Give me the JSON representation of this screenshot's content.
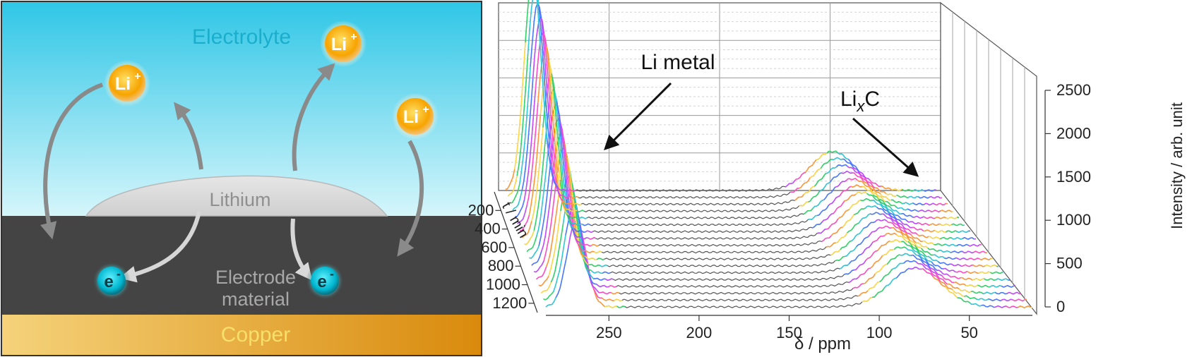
{
  "left_panel": {
    "electrolyte_label": "Electrolyte",
    "lithium_label": "Lithium",
    "electrode_label_line1": "Electrode",
    "electrode_label_line2": "material",
    "copper_label": "Copper",
    "ion_symbol": "Li",
    "ion_charge": "+",
    "electron_symbol": "e",
    "electron_charge": "-",
    "colors": {
      "electrolyte_top": "#2fc6e6",
      "electrolyte_bottom": "#d6f6fb",
      "electrode": "#444444",
      "lithium": "#d9d9d9",
      "copper_left": "#f5d27a",
      "copper_right": "#d98a0c",
      "ion_core": "#f7a400",
      "electron_core": "#00c2d9",
      "arrow": "#8a8a8a"
    }
  },
  "chart_data": {
    "type": "3d-waterfall",
    "xlabel": "δ / ppm",
    "ylabel": "t / min",
    "zlabel": "Intensity / arb. unit",
    "x_ticks": [
      250,
      200,
      150,
      100,
      50
    ],
    "y_ticks": [
      200,
      400,
      600,
      800,
      1000,
      1200
    ],
    "z_ticks": [
      0,
      500,
      1000,
      1500,
      2000,
      2500
    ],
    "xlim": [
      285,
      15
    ],
    "zlim": [
      0,
      2500
    ],
    "n_traces": 18,
    "annotations": [
      {
        "text": "Li metal",
        "target_ppm": 265
      },
      {
        "text_main": "Li",
        "text_sub": "x",
        "text_tail": "C",
        "target_ppm": 90
      }
    ],
    "peaks": {
      "li_metal_ppm": 268,
      "li_metal_intensity_first": 1000,
      "li_metal_intensity_last": 2500,
      "lixc_ppm": 80,
      "lixc_intensity": 450
    },
    "colors": {
      "baseline": "#555555",
      "rainbow": [
        "#ff9a3c",
        "#ffd94a",
        "#34d46a",
        "#33c9d9",
        "#4a7bff",
        "#c24bff",
        "#ff4fc7"
      ]
    }
  }
}
